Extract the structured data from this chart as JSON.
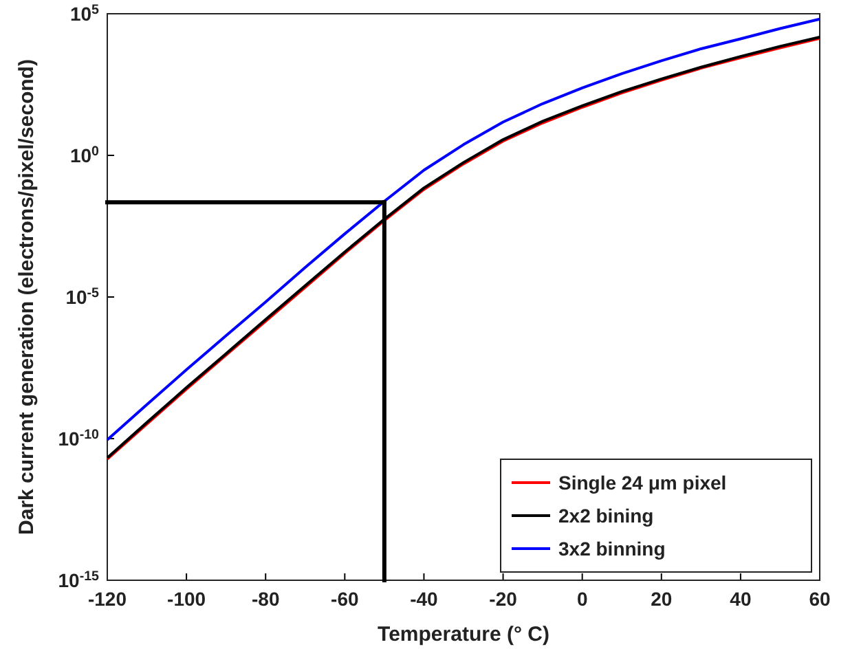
{
  "chart_data": {
    "type": "line",
    "xlabel": "Temperature (° C)",
    "ylabel": "Dark current generation (electrons/pixel/second)",
    "x": [
      -120,
      -110,
      -100,
      -90,
      -80,
      -70,
      -60,
      -50,
      -40,
      -30,
      -20,
      -10,
      0,
      10,
      20,
      30,
      40,
      50,
      60
    ],
    "series": [
      {
        "name": "Single 24 μm pixel",
        "color": "#ff0000",
        "values": [
          1.9e-11,
          3.3e-10,
          5.6e-09,
          8.9e-08,
          1.4e-06,
          2.2e-05,
          0.00035,
          0.005,
          0.063,
          0.5,
          3.2,
          14,
          50,
          160,
          450,
          1200,
          2800,
          6300,
          13500
        ]
      },
      {
        "name": "2x2 bining",
        "color": "#000000",
        "values": [
          2.1e-11,
          3.7e-10,
          6.3e-09,
          1e-07,
          1.6e-06,
          2.5e-05,
          0.00039,
          0.0056,
          0.071,
          0.56,
          3.6,
          16,
          56,
          180,
          500,
          1300,
          3100,
          7100,
          15000
        ]
      },
      {
        "name": "3x2 binning",
        "color": "#0000ff",
        "values": [
          9.1e-11,
          1.6e-09,
          2.7e-08,
          4.3e-07,
          6.7e-06,
          0.00011,
          0.0017,
          0.024,
          0.3,
          2.4,
          15,
          67,
          240,
          770,
          2200,
          5800,
          13000,
          30000,
          65000
        ]
      }
    ],
    "ref_lines": [
      {
        "axis": "x",
        "value": -50,
        "color": "#000000"
      },
      {
        "axis": "y",
        "value": 0.022,
        "color": "#000000"
      }
    ],
    "xlim": [
      -120,
      60
    ],
    "xticks": [
      -120,
      -100,
      -80,
      -60,
      -40,
      -20,
      0,
      20,
      40,
      60
    ],
    "ylim": [
      1e-15,
      100000.0
    ],
    "yticks": [
      {
        "value": 1e-15,
        "label": "10$^{-15}$"
      },
      {
        "value": 1e-10,
        "label": "10$^{-10}$"
      },
      {
        "value": 1e-05,
        "label": "10$^{-5}$"
      },
      {
        "value": 1,
        "label": "10$^{0}$"
      },
      {
        "value": 100000.0,
        "label": "10$^{5}$"
      }
    ],
    "log": "y",
    "grid": false,
    "legend": "bottom right",
    "marker": "none",
    "line_style": "solid"
  }
}
